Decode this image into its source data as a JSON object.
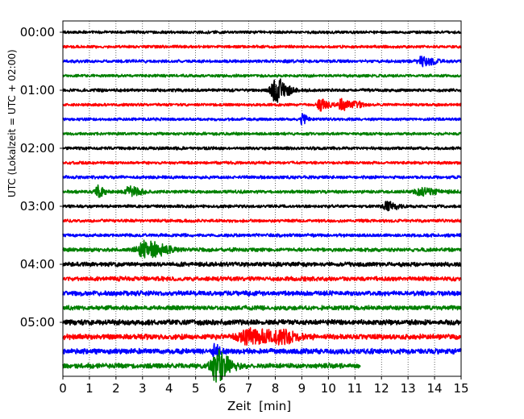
{
  "chart_data": {
    "type": "line",
    "subtype": "helicorder",
    "xlabel": "Zeit  [min]",
    "ylabel": "UTC (Lokalzeit = UTC + 02:00)",
    "xlim": [
      0,
      15
    ],
    "x_ticks": [
      "0",
      "1",
      "2",
      "3",
      "4",
      "5",
      "6",
      "7",
      "8",
      "9",
      "10",
      "11",
      "12",
      "13",
      "14",
      "15"
    ],
    "grid": "vertical dotted",
    "trace_interval_min": 15,
    "y_tick_labels": [
      "00:00",
      "01:00",
      "02:00",
      "03:00",
      "04:00",
      "05:00"
    ],
    "colors": [
      "#000000",
      "#ff0000",
      "#0000ff",
      "#008000"
    ],
    "rows": [
      {
        "start": "00:00",
        "color": "#000000",
        "noise": 0.35,
        "end_min": 15,
        "events": []
      },
      {
        "start": "00:15",
        "color": "#ff0000",
        "noise": 0.35,
        "end_min": 15,
        "events": []
      },
      {
        "start": "00:30",
        "color": "#0000ff",
        "noise": 0.38,
        "end_min": 15,
        "events": [
          {
            "t": 13.5,
            "amp": 0.9,
            "dur": 0.4
          }
        ]
      },
      {
        "start": "00:45",
        "color": "#008000",
        "noise": 0.35,
        "end_min": 15,
        "events": []
      },
      {
        "start": "01:00",
        "color": "#000000",
        "noise": 0.38,
        "end_min": 15,
        "events": [
          {
            "t": 8.0,
            "amp": 2.6,
            "dur": 0.35
          }
        ]
      },
      {
        "start": "01:15",
        "color": "#ff0000",
        "noise": 0.35,
        "end_min": 15,
        "events": [
          {
            "t": 9.7,
            "amp": 1.2,
            "dur": 0.25
          },
          {
            "t": 10.5,
            "amp": 1.3,
            "dur": 0.25
          },
          {
            "t": 11.0,
            "amp": 0.9,
            "dur": 0.2
          }
        ]
      },
      {
        "start": "01:30",
        "color": "#0000ff",
        "noise": 0.35,
        "end_min": 15,
        "events": [
          {
            "t": 9.0,
            "amp": 1.1,
            "dur": 0.15
          }
        ]
      },
      {
        "start": "01:45",
        "color": "#008000",
        "noise": 0.35,
        "end_min": 15,
        "events": []
      },
      {
        "start": "02:00",
        "color": "#000000",
        "noise": 0.38,
        "end_min": 15,
        "events": []
      },
      {
        "start": "02:15",
        "color": "#ff0000",
        "noise": 0.35,
        "end_min": 15,
        "events": []
      },
      {
        "start": "02:30",
        "color": "#0000ff",
        "noise": 0.38,
        "end_min": 15,
        "events": []
      },
      {
        "start": "02:45",
        "color": "#008000",
        "noise": 0.4,
        "end_min": 15,
        "events": [
          {
            "t": 1.3,
            "amp": 1.2,
            "dur": 0.2
          },
          {
            "t": 2.5,
            "amp": 1.1,
            "dur": 0.3
          },
          {
            "t": 13.5,
            "amp": 0.7,
            "dur": 0.5
          }
        ]
      },
      {
        "start": "03:00",
        "color": "#000000",
        "noise": 0.38,
        "end_min": 15,
        "events": [
          {
            "t": 12.2,
            "amp": 0.9,
            "dur": 0.3
          }
        ]
      },
      {
        "start": "03:15",
        "color": "#ff0000",
        "noise": 0.38,
        "end_min": 15,
        "events": []
      },
      {
        "start": "03:30",
        "color": "#0000ff",
        "noise": 0.4,
        "end_min": 15,
        "events": []
      },
      {
        "start": "03:45",
        "color": "#008000",
        "noise": 0.45,
        "end_min": 15,
        "events": [
          {
            "t": 3.1,
            "amp": 1.9,
            "dur": 0.6
          }
        ]
      },
      {
        "start": "04:00",
        "color": "#000000",
        "noise": 0.55,
        "end_min": 15,
        "events": []
      },
      {
        "start": "04:15",
        "color": "#ff0000",
        "noise": 0.55,
        "end_min": 15,
        "events": []
      },
      {
        "start": "04:30",
        "color": "#0000ff",
        "noise": 0.6,
        "end_min": 15,
        "events": []
      },
      {
        "start": "04:45",
        "color": "#008000",
        "noise": 0.55,
        "end_min": 15,
        "events": []
      },
      {
        "start": "05:00",
        "color": "#000000",
        "noise": 0.65,
        "end_min": 15,
        "events": []
      },
      {
        "start": "05:15",
        "color": "#ff0000",
        "noise": 0.65,
        "end_min": 15,
        "events": [
          {
            "t": 7.0,
            "amp": 1.5,
            "dur": 0.9
          },
          {
            "t": 8.2,
            "amp": 1.0,
            "dur": 0.4
          }
        ]
      },
      {
        "start": "05:30",
        "color": "#0000ff",
        "noise": 0.65,
        "end_min": 15,
        "events": [
          {
            "t": 5.7,
            "amp": 1.4,
            "dur": 0.15
          }
        ]
      },
      {
        "start": "05:45",
        "color": "#008000",
        "noise": 0.6,
        "end_min": 11.2,
        "events": [
          {
            "t": 5.75,
            "amp": 3.5,
            "dur": 0.4
          }
        ]
      }
    ]
  }
}
